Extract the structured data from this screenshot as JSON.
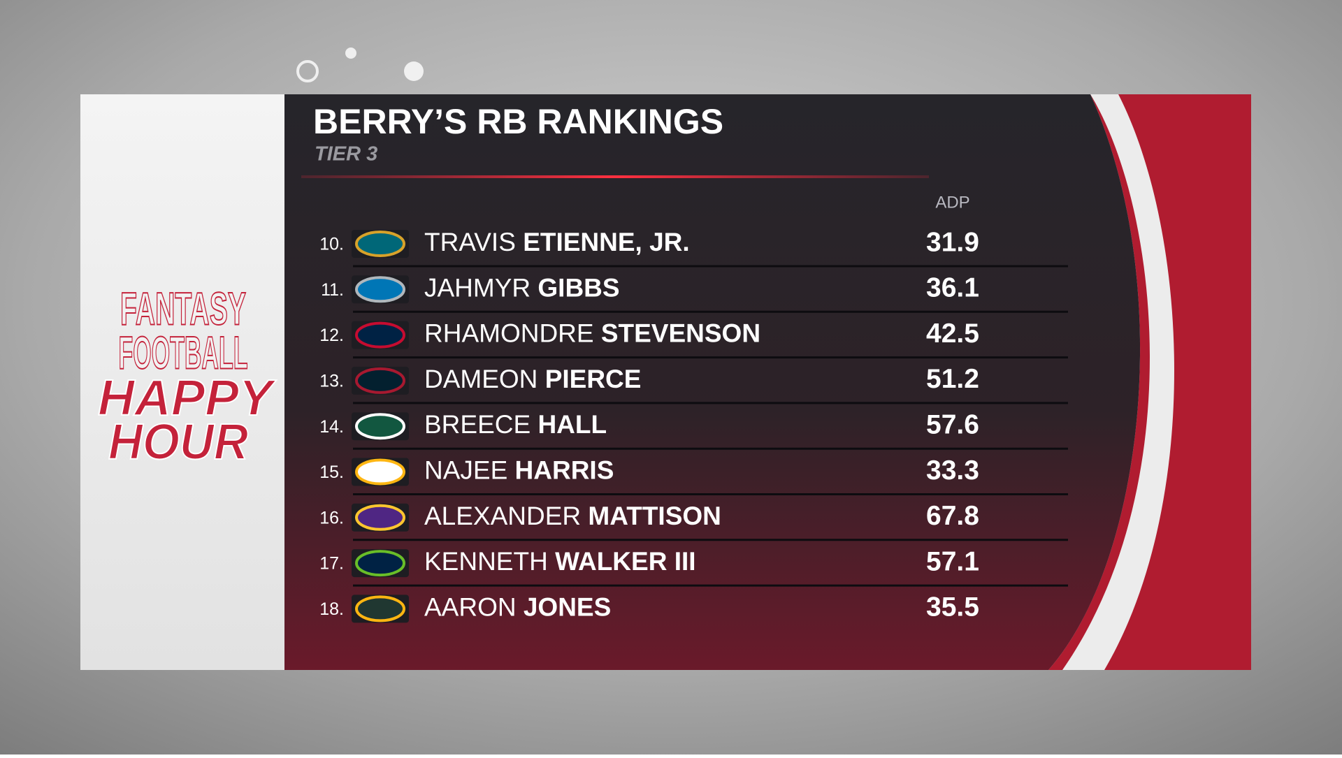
{
  "header": {
    "title": "BERRY’S RB RANKINGS",
    "subtitle": "TIER 3"
  },
  "show_logo": [
    "FANTASY",
    "FOOTBALL",
    "HAPPY",
    "HOUR"
  ],
  "table": {
    "column_header": "ADP",
    "rows": [
      {
        "rank": "10.",
        "first": "TRAVIS",
        "last": "ETIENNE, JR.",
        "adp": 31.9
      },
      {
        "rank": "11.",
        "first": "JAHMYR",
        "last": "GIBBS",
        "adp": 36.1
      },
      {
        "rank": "12.",
        "first": "RHAMONDRE",
        "last": "STEVENSON",
        "adp": 42.5
      },
      {
        "rank": "13.",
        "first": "DAMEON",
        "last": "PIERCE",
        "adp": 51.2
      },
      {
        "rank": "14.",
        "first": "BREECE",
        "last": "HALL",
        "adp": 57.6
      },
      {
        "rank": "15.",
        "first": "NAJEE",
        "last": "HARRIS",
        "adp": 33.3
      },
      {
        "rank": "16.",
        "first": "ALEXANDER",
        "last": "MATTISON",
        "adp": 67.8
      },
      {
        "rank": "17.",
        "first": "KENNETH",
        "last": "WALKER III",
        "adp": 57.1
      },
      {
        "rank": "18.",
        "first": "AARON",
        "last": "JONES",
        "adp": 35.5
      }
    ]
  }
}
